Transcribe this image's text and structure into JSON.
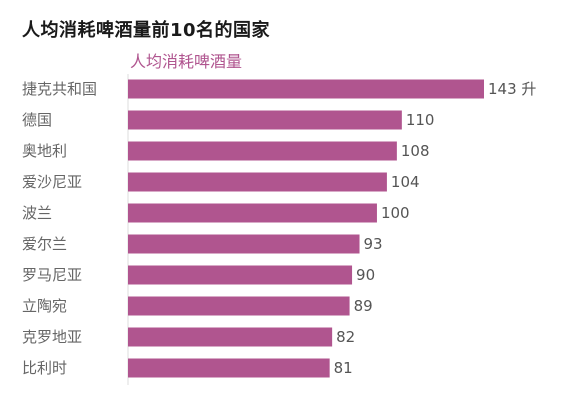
{
  "chart_data": {
    "type": "bar",
    "orientation": "horizontal",
    "title": "人均消耗啤酒量前10名的国家",
    "subtitle": "人均消耗啤酒量",
    "categories": [
      "捷克共和国",
      "德国",
      "奥地利",
      "爱沙尼亚",
      "波兰",
      "爱尔兰",
      "罗马尼亚",
      "立陶宛",
      "克罗地亚",
      "比利时"
    ],
    "values": [
      143,
      110,
      108,
      104,
      100,
      93,
      90,
      89,
      82,
      81
    ],
    "value_labels": [
      "143 升",
      "110",
      "108",
      "104",
      "100",
      "93",
      "90",
      "89",
      "82",
      "81"
    ],
    "xlim": [
      0,
      143
    ],
    "bar_color": "#b0558f",
    "legend": "none",
    "grid": false
  }
}
